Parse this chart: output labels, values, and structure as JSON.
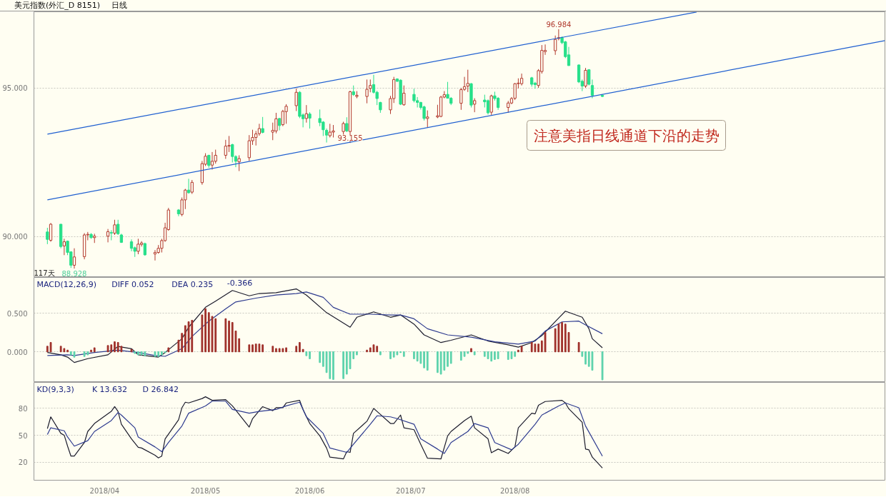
{
  "chart_data": [
    {
      "type": "candlestick",
      "title": "美元指数(外汇_D 8151)",
      "subtitle": "日线",
      "x": [
        "2018-03-15",
        "2018-03-16",
        "2018-03-19",
        "2018-03-20",
        "2018-03-21",
        "2018-03-22",
        "2018-03-23",
        "2018-03-26",
        "2018-03-27",
        "2018-03-28",
        "2018-03-29",
        "2018-04-02",
        "2018-04-03",
        "2018-04-04",
        "2018-04-05",
        "2018-04-06",
        "2018-04-09",
        "2018-04-10",
        "2018-04-11",
        "2018-04-12",
        "2018-04-13",
        "2018-04-16",
        "2018-04-17",
        "2018-04-18",
        "2018-04-19",
        "2018-04-20",
        "2018-04-23",
        "2018-04-24",
        "2018-04-25",
        "2018-04-26",
        "2018-04-27",
        "2018-04-30",
        "2018-05-01",
        "2018-05-02",
        "2018-05-03",
        "2018-05-04",
        "2018-05-07",
        "2018-05-08",
        "2018-05-09",
        "2018-05-10",
        "2018-05-11",
        "2018-05-14",
        "2018-05-15",
        "2018-05-16",
        "2018-05-17",
        "2018-05-18",
        "2018-05-21",
        "2018-05-22",
        "2018-05-23",
        "2018-05-24",
        "2018-05-25",
        "2018-05-28",
        "2018-05-29",
        "2018-05-30",
        "2018-05-31",
        "2018-06-01",
        "2018-06-04",
        "2018-06-05",
        "2018-06-06",
        "2018-06-07",
        "2018-06-08",
        "2018-06-11",
        "2018-06-12",
        "2018-06-13",
        "2018-06-14",
        "2018-06-15",
        "2018-06-18",
        "2018-06-19",
        "2018-06-20",
        "2018-06-21",
        "2018-06-22",
        "2018-06-25",
        "2018-06-26",
        "2018-06-27",
        "2018-06-28",
        "2018-06-29",
        "2018-07-02",
        "2018-07-03",
        "2018-07-04",
        "2018-07-05",
        "2018-07-06",
        "2018-07-09",
        "2018-07-10",
        "2018-07-11",
        "2018-07-12",
        "2018-07-13",
        "2018-07-16",
        "2018-07-17",
        "2018-07-18",
        "2018-07-19",
        "2018-07-20",
        "2018-07-23",
        "2018-07-24",
        "2018-07-25",
        "2018-07-26",
        "2018-07-27",
        "2018-07-30",
        "2018-07-31",
        "2018-08-01",
        "2018-08-02",
        "2018-08-03",
        "2018-08-06",
        "2018-08-07",
        "2018-08-08",
        "2018-08-09",
        "2018-08-10",
        "2018-08-13",
        "2018-08-14",
        "2018-08-15",
        "2018-08-16",
        "2018-08-17",
        "2018-08-20",
        "2018-08-21",
        "2018-08-22",
        "2018-08-23",
        "2018-08-24",
        "2018-08-27"
      ],
      "ohlc": [
        [
          90.16,
          90.3,
          89.75,
          89.91
        ],
        [
          89.88,
          90.46,
          89.83,
          90.42
        ],
        [
          90.42,
          90.43,
          89.61,
          89.67
        ],
        [
          89.69,
          89.93,
          89.38,
          89.83
        ],
        [
          89.85,
          89.87,
          89.38,
          89.47
        ],
        [
          89.49,
          89.51,
          88.95,
          89.04
        ],
        [
          89.04,
          89.61,
          88.928,
          89.32
        ],
        [
          89.33,
          90.12,
          89.24,
          90.06
        ],
        [
          90.06,
          90.16,
          89.88,
          90.08
        ],
        [
          90.08,
          90.12,
          89.93,
          89.97
        ],
        [
          89.97,
          90.1,
          89.79,
          90.02
        ],
        [
          90.02,
          90.26,
          89.81,
          90.17
        ],
        [
          90.14,
          90.22,
          89.88,
          90.12
        ],
        [
          90.12,
          90.57,
          90.06,
          90.4
        ],
        [
          90.42,
          90.57,
          90.06,
          90.1
        ],
        [
          90.06,
          90.1,
          89.79,
          89.81
        ],
        [
          89.83,
          89.91,
          89.51,
          89.61
        ],
        [
          89.63,
          89.67,
          89.32,
          89.51
        ],
        [
          89.51,
          89.93,
          89.41,
          89.75
        ],
        [
          89.74,
          89.85,
          89.67,
          89.79
        ],
        [
          89.77,
          89.8,
          89.36,
          89.39
        ],
        [
          89.42,
          89.55,
          89.2,
          89.47
        ],
        [
          89.47,
          89.72,
          89.43,
          89.61
        ],
        [
          89.61,
          89.93,
          89.47,
          89.87
        ],
        [
          89.87,
          90.47,
          89.83,
          90.3
        ],
        [
          90.24,
          90.97,
          90.2,
          90.9
        ],
        [
          90.9,
          90.93,
          90.69,
          90.77
        ],
        [
          90.75,
          91.32,
          90.69,
          91.24
        ],
        [
          91.24,
          91.61,
          90.93,
          91.57
        ],
        [
          91.57,
          91.95,
          91.45,
          91.48
        ],
        [
          91.5,
          91.91,
          91.44,
          91.83
        ],
        [
          91.82,
          92.55,
          91.75,
          92.46
        ],
        [
          92.44,
          92.81,
          92.38,
          92.71
        ],
        [
          92.74,
          92.76,
          92.32,
          92.4
        ],
        [
          92.41,
          92.85,
          92.26,
          92.54
        ],
        [
          92.54,
          92.93,
          92.46,
          92.74
        ],
        [
          92.74,
          93.26,
          92.62,
          93.05
        ],
        [
          93.05,
          93.39,
          92.85,
          93.07
        ],
        [
          93.1,
          93.13,
          92.5,
          92.7
        ],
        [
          92.7,
          92.74,
          92.34,
          92.54
        ],
        [
          92.52,
          92.74,
          92.21,
          92.63
        ],
        [
          92.66,
          93.42,
          92.55,
          93.23
        ],
        [
          93.23,
          93.6,
          93.09,
          93.34
        ],
        [
          93.34,
          93.56,
          93.07,
          93.46
        ],
        [
          93.47,
          93.8,
          93.4,
          93.64
        ],
        [
          93.64,
          94.03,
          93.48,
          93.51
        ],
        [
          93.52,
          93.84,
          93.25,
          93.58
        ],
        [
          93.56,
          94.17,
          93.48,
          93.97
        ],
        [
          93.98,
          94.0,
          93.58,
          93.74
        ],
        [
          93.77,
          94.27,
          93.72,
          94.22
        ],
        [
          94.21,
          94.46,
          93.8,
          94.39
        ],
        [
          94.41,
          94.99,
          94.23,
          94.86
        ],
        [
          94.86,
          94.9,
          93.99,
          94.05
        ],
        [
          94.1,
          94.15,
          93.68,
          93.97
        ],
        [
          93.98,
          94.43,
          93.84,
          94.14
        ],
        [
          94.13,
          94.19,
          93.64,
          93.99
        ],
        [
          93.98,
          94.28,
          93.72,
          93.84
        ],
        [
          93.86,
          93.89,
          93.39,
          93.6
        ],
        [
          93.58,
          93.64,
          93.17,
          93.42
        ],
        [
          93.4,
          93.8,
          93.34,
          93.52
        ],
        [
          93.52,
          93.76,
          93.34,
          93.56
        ],
        [
          93.54,
          93.87,
          93.44,
          93.81
        ],
        [
          93.81,
          94.02,
          93.52,
          93.56
        ],
        [
          93.54,
          94.91,
          93.155,
          94.88
        ],
        [
          94.88,
          95.09,
          94.74,
          94.78
        ],
        [
          94.72,
          94.9,
          94.66,
          94.76
        ],
        [
          94.72,
          95.29,
          94.49,
          94.96
        ],
        [
          94.99,
          95.29,
          94.86,
          95.09
        ],
        [
          95.12,
          95.45,
          94.82,
          94.86
        ],
        [
          94.86,
          94.91,
          94.43,
          94.65
        ],
        [
          94.52,
          94.54,
          94.17,
          94.27
        ],
        [
          94.27,
          94.74,
          94.13,
          94.65
        ],
        [
          94.65,
          95.38,
          94.5,
          95.29
        ],
        [
          95.31,
          95.33,
          95.21,
          95.23
        ],
        [
          95.27,
          95.29,
          94.43,
          94.46
        ],
        [
          94.44,
          95.09,
          94.41,
          94.83
        ],
        [
          94.79,
          94.98,
          94.52,
          94.58
        ],
        [
          94.58,
          94.7,
          94.35,
          94.52
        ],
        [
          94.52,
          94.54,
          94.28,
          94.35
        ],
        [
          94.37,
          94.41,
          93.91,
          93.98
        ],
        [
          93.98,
          94.25,
          93.68,
          94.03
        ],
        [
          94.03,
          94.44,
          93.99,
          94.07
        ],
        [
          94.05,
          94.74,
          94.02,
          94.7
        ],
        [
          94.7,
          94.9,
          94.66,
          94.78
        ],
        [
          94.79,
          95.21,
          94.65,
          94.66
        ],
        [
          94.66,
          94.7,
          94.43,
          94.49
        ],
        [
          94.49,
          95.01,
          94.27,
          94.95
        ],
        [
          94.96,
          95.38,
          94.91,
          95.05
        ],
        [
          95.07,
          95.62,
          94.87,
          95.16
        ],
        [
          95.15,
          95.17,
          94.35,
          94.43
        ],
        [
          94.46,
          94.66,
          94.19,
          94.58
        ],
        [
          94.6,
          94.78,
          94.35,
          94.54
        ],
        [
          94.58,
          94.62,
          94.11,
          94.17
        ],
        [
          94.19,
          94.78,
          94.1,
          94.74
        ],
        [
          94.74,
          94.88,
          94.58,
          94.65
        ],
        [
          94.66,
          94.7,
          94.27,
          94.35
        ],
        [
          94.35,
          94.57,
          94.17,
          94.5
        ],
        [
          94.5,
          94.7,
          94.46,
          94.65
        ],
        [
          94.66,
          95.17,
          94.6,
          95.15
        ],
        [
          95.15,
          95.33,
          94.99,
          95.17
        ],
        [
          95.15,
          95.49,
          95.09,
          95.33
        ],
        [
          95.35,
          95.38,
          95.05,
          95.13
        ],
        [
          95.17,
          95.21,
          94.98,
          95.12
        ],
        [
          95.09,
          95.64,
          95.01,
          95.59
        ],
        [
          95.56,
          96.45,
          95.49,
          96.27
        ],
        [
          96.23,
          96.47,
          96.12,
          96.27
        ],
        [
          96.26,
          96.77,
          96.12,
          96.64
        ],
        [
          96.67,
          96.984,
          96.61,
          96.7
        ],
        [
          96.7,
          96.74,
          96.48,
          96.53
        ],
        [
          96.56,
          96.59,
          96.01,
          96.06
        ],
        [
          96.12,
          96.39,
          95.75,
          95.76
        ],
        [
          95.78,
          95.8,
          95.17,
          95.21
        ],
        [
          95.23,
          95.29,
          94.9,
          95.07
        ],
        [
          95.07,
          95.68,
          95.01,
          95.6
        ],
        [
          95.62,
          95.64,
          95.09,
          95.13
        ],
        [
          95.09,
          95.29,
          94.66,
          94.76
        ],
        [
          94.76,
          94.78,
          94.7,
          94.72
        ]
      ],
      "colors": [
        "#27e08a",
        "#b33a2e",
        "#27e08a",
        "#b33a2e",
        "#27e08a",
        "#27e08a",
        "#b33a2e",
        "#b33a2e",
        "#b33a2e",
        "#27e08a",
        "#b33a2e",
        "#b33a2e",
        "#27e08a",
        "#b33a2e",
        "#27e08a",
        "#27e08a",
        "#27e08a",
        "#27e08a",
        "#b33a2e",
        "#b33a2e",
        "#27e08a",
        "#b33a2e",
        "#b33a2e",
        "#b33a2e",
        "#b33a2e",
        "#b33a2e",
        "#27e08a",
        "#b33a2e",
        "#b33a2e",
        "#27e08a",
        "#b33a2e",
        "#b33a2e",
        "#b33a2e",
        "#27e08a",
        "#b33a2e",
        "#b33a2e",
        "#b33a2e",
        "#b33a2e",
        "#27e08a",
        "#27e08a",
        "#b33a2e",
        "#b33a2e",
        "#b33a2e",
        "#b33a2e",
        "#b33a2e",
        "#27e08a",
        "#b33a2e",
        "#b33a2e",
        "#27e08a",
        "#b33a2e",
        "#b33a2e",
        "#b33a2e",
        "#27e08a",
        "#27e08a",
        "#b33a2e",
        "#27e08a",
        "#27e08a",
        "#27e08a",
        "#27e08a",
        "#b33a2e",
        "#b33a2e",
        "#b33a2e",
        "#27e08a",
        "#b33a2e",
        "#27e08a",
        "#b33a2e",
        "#b33a2e",
        "#b33a2e",
        "#27e08a",
        "#27e08a",
        "#27e08a",
        "#b33a2e",
        "#b33a2e",
        "#27e08a",
        "#27e08a",
        "#b33a2e",
        "#27e08a",
        "#27e08a",
        "#27e08a",
        "#27e08a",
        "#b33a2e",
        "#b33a2e",
        "#b33a2e",
        "#b33a2e",
        "#27e08a",
        "#27e08a",
        "#b33a2e",
        "#b33a2e",
        "#b33a2e",
        "#27e08a",
        "#b33a2e",
        "#27e08a",
        "#27e08a",
        "#b33a2e",
        "#27e08a",
        "#27e08a",
        "#b33a2e",
        "#b33a2e",
        "#b33a2e",
        "#b33a2e",
        "#b33a2e",
        "#27e08a",
        "#27e08a",
        "#b33a2e",
        "#b33a2e",
        "#b33a2e",
        "#b33a2e",
        "#b33a2e",
        "#27e08a",
        "#27e08a",
        "#27e08a",
        "#27e08a",
        "#27e08a",
        "#b33a2e",
        "#27e08a",
        "#27e08a",
        "#27e08a"
      ],
      "series": [
        {
          "type": "line",
          "x": [
            "2018-03-15",
            "2018-09-24"
          ],
          "values": [
            93.45,
            97.56
          ],
          "color": "#1f5fd0"
        },
        {
          "type": "line",
          "x": [
            "2018-03-15",
            "2018-11-19"
          ],
          "values": [
            91.24,
            96.6
          ],
          "color": "#1f5fd0"
        }
      ],
      "xlim": [
        "2018-03-11",
        "2018-11-19"
      ],
      "ylim": [
        88.63,
        97.57
      ],
      "yticks": [
        {
          "value": 90,
          "label": "90.000"
        },
        {
          "value": 95,
          "label": "95.000"
        }
      ],
      "grid": "y",
      "tick_labels": "y",
      "annotations": [
        {
          "text": "96.984",
          "x": "2018-08-14",
          "y": 96.984
        },
        {
          "text": "93.155",
          "x": "2018-06-13",
          "y": 93.155
        },
        "117天",
        {
          "text": "88.928",
          "x": "2018-03-23",
          "y": 88.928
        },
        "注意美指日线通道下沿的走势"
      ]
    },
    {
      "type": "bar",
      "title": "MACD(12,26,9)",
      "x": [
        "2018-03-15",
        "2018-03-16",
        "2018-03-19",
        "2018-03-20",
        "2018-03-21",
        "2018-03-22",
        "2018-03-23",
        "2018-03-26",
        "2018-03-27",
        "2018-03-28",
        "2018-03-29",
        "2018-04-02",
        "2018-04-03",
        "2018-04-04",
        "2018-04-05",
        "2018-04-06",
        "2018-04-09",
        "2018-04-10",
        "2018-04-11",
        "2018-04-12",
        "2018-04-13",
        "2018-04-16",
        "2018-04-17",
        "2018-04-18",
        "2018-04-19",
        "2018-04-20",
        "2018-04-23",
        "2018-04-24",
        "2018-04-25",
        "2018-04-26",
        "2018-04-27",
        "2018-04-30",
        "2018-05-01",
        "2018-05-02",
        "2018-05-03",
        "2018-05-04",
        "2018-05-07",
        "2018-05-08",
        "2018-05-09",
        "2018-05-10",
        "2018-05-11",
        "2018-05-14",
        "2018-05-15",
        "2018-05-16",
        "2018-05-17",
        "2018-05-18",
        "2018-05-21",
        "2018-05-22",
        "2018-05-23",
        "2018-05-24",
        "2018-05-25",
        "2018-05-28",
        "2018-05-29",
        "2018-05-30",
        "2018-05-31",
        "2018-06-01",
        "2018-06-04",
        "2018-06-05",
        "2018-06-06",
        "2018-06-07",
        "2018-06-08",
        "2018-06-11",
        "2018-06-12",
        "2018-06-13",
        "2018-06-14",
        "2018-06-15",
        "2018-06-18",
        "2018-06-19",
        "2018-06-20",
        "2018-06-21",
        "2018-06-22",
        "2018-06-25",
        "2018-06-26",
        "2018-06-27",
        "2018-06-28",
        "2018-06-29",
        "2018-07-02",
        "2018-07-03",
        "2018-07-04",
        "2018-07-05",
        "2018-07-06",
        "2018-07-09",
        "2018-07-10",
        "2018-07-11",
        "2018-07-12",
        "2018-07-13",
        "2018-07-16",
        "2018-07-17",
        "2018-07-18",
        "2018-07-19",
        "2018-07-20",
        "2018-07-23",
        "2018-07-24",
        "2018-07-25",
        "2018-07-26",
        "2018-07-27",
        "2018-07-30",
        "2018-07-31",
        "2018-08-01",
        "2018-08-02",
        "2018-08-03",
        "2018-08-06",
        "2018-08-07",
        "2018-08-08",
        "2018-08-09",
        "2018-08-10",
        "2018-08-13",
        "2018-08-14",
        "2018-08-15",
        "2018-08-16",
        "2018-08-17",
        "2018-08-20",
        "2018-08-21",
        "2018-08-22",
        "2018-08-23",
        "2018-08-24",
        "2018-08-27"
      ],
      "series": [
        {
          "values": [
            0.07,
            0.12,
            0.07,
            0.04,
            0.02,
            -0.04,
            -0.07,
            -0.06,
            -0.04,
            0.02,
            0.05,
            0.08,
            0.09,
            0.13,
            0.12,
            0.07,
            0.03,
            -0.02,
            -0.04,
            -0.04,
            -0.05,
            -0.06,
            -0.06,
            -0.04,
            -0.01,
            0.05,
            0.15,
            0.24,
            0.34,
            0.39,
            0.41,
            0.48,
            0.56,
            0.51,
            0.46,
            0.43,
            0.43,
            0.4,
            0.38,
            0.27,
            0.17,
            0.09,
            0.09,
            0.1,
            0.1,
            0.09,
            0.07,
            0.04,
            0.04,
            0.04,
            0.05,
            0.07,
            0.12,
            0.03,
            -0.05,
            -0.09,
            -0.14,
            -0.19,
            -0.27,
            -0.35,
            -0.36,
            -0.35,
            -0.29,
            -0.22,
            -0.09,
            -0.04,
            0.02,
            0.05,
            0.09,
            0.07,
            -0.04,
            -0.09,
            -0.07,
            -0.04,
            -0.01,
            -0.06,
            -0.09,
            -0.12,
            -0.15,
            -0.21,
            -0.24,
            -0.27,
            -0.29,
            -0.24,
            -0.19,
            -0.15,
            -0.11,
            -0.06,
            -0.02,
            0.04,
            -0.04,
            -0.06,
            -0.09,
            -0.12,
            -0.1,
            -0.09,
            -0.1,
            -0.09,
            -0.06,
            0.02,
            0.07,
            0.12,
            0.1,
            0.1,
            0.14,
            0.25,
            0.3,
            0.36,
            0.38,
            0.36,
            0.25,
            0.12,
            -0.06,
            -0.16,
            -0.19,
            -0.24,
            -0.366
          ],
          "colors": [
            "#a0322c",
            "#a0322c",
            "#a0322c",
            "#a0322c",
            "#a0322c",
            "#5fd3ad",
            "#5fd3ad",
            "#5fd3ad",
            "#5fd3ad",
            "#a0322c",
            "#a0322c",
            "#a0322c",
            "#a0322c",
            "#a0322c",
            "#a0322c",
            "#a0322c",
            "#a0322c",
            "#5fd3ad",
            "#5fd3ad",
            "#5fd3ad",
            "#5fd3ad",
            "#5fd3ad",
            "#5fd3ad",
            "#5fd3ad",
            "#5fd3ad",
            "#a0322c",
            "#a0322c",
            "#a0322c",
            "#a0322c",
            "#a0322c",
            "#a0322c",
            "#a0322c",
            "#a0322c",
            "#a0322c",
            "#a0322c",
            "#a0322c",
            "#a0322c",
            "#a0322c",
            "#a0322c",
            "#a0322c",
            "#a0322c",
            "#a0322c",
            "#a0322c",
            "#a0322c",
            "#a0322c",
            "#a0322c",
            "#a0322c",
            "#a0322c",
            "#a0322c",
            "#a0322c",
            "#a0322c",
            "#a0322c",
            "#a0322c",
            "#a0322c",
            "#5fd3ad",
            "#5fd3ad",
            "#5fd3ad",
            "#5fd3ad",
            "#5fd3ad",
            "#5fd3ad",
            "#5fd3ad",
            "#5fd3ad",
            "#5fd3ad",
            "#5fd3ad",
            "#5fd3ad",
            "#5fd3ad",
            "#a0322c",
            "#a0322c",
            "#a0322c",
            "#a0322c",
            "#5fd3ad",
            "#5fd3ad",
            "#5fd3ad",
            "#5fd3ad",
            "#5fd3ad",
            "#5fd3ad",
            "#5fd3ad",
            "#5fd3ad",
            "#5fd3ad",
            "#5fd3ad",
            "#5fd3ad",
            "#5fd3ad",
            "#5fd3ad",
            "#5fd3ad",
            "#5fd3ad",
            "#5fd3ad",
            "#5fd3ad",
            "#5fd3ad",
            "#5fd3ad",
            "#a0322c",
            "#5fd3ad",
            "#5fd3ad",
            "#5fd3ad",
            "#5fd3ad",
            "#5fd3ad",
            "#5fd3ad",
            "#5fd3ad",
            "#5fd3ad",
            "#5fd3ad",
            "#a0322c",
            "#a0322c",
            "#a0322c",
            "#a0322c",
            "#a0322c",
            "#a0322c",
            "#a0322c",
            "#a0322c",
            "#a0322c",
            "#a0322c",
            "#a0322c",
            "#a0322c",
            "#a0322c",
            "#5fd3ad",
            "#5fd3ad",
            "#5fd3ad",
            "#5fd3ad",
            "#5fd3ad"
          ]
        },
        {
          "type": "line",
          "x": [
            "2018-03-15",
            "2018-03-19",
            "2018-03-21",
            "2018-03-23",
            "2018-03-27",
            "2018-04-02",
            "2018-04-05",
            "2018-04-09",
            "2018-04-11",
            "2018-04-17",
            "2018-04-19",
            "2018-04-24",
            "2018-04-26",
            "2018-05-01",
            "2018-05-04",
            "2018-05-09",
            "2018-05-14",
            "2018-05-17",
            "2018-05-22",
            "2018-05-28",
            "2018-05-31",
            "2018-06-06",
            "2018-06-13",
            "2018-06-15",
            "2018-06-20",
            "2018-06-25",
            "2018-06-28",
            "2018-07-02",
            "2018-07-05",
            "2018-07-10",
            "2018-07-13",
            "2018-07-19",
            "2018-07-24",
            "2018-07-30",
            "2018-08-02",
            "2018-08-06",
            "2018-08-09",
            "2018-08-14",
            "2018-08-16",
            "2018-08-21",
            "2018-08-23",
            "2018-08-24",
            "2018-08-27"
          ],
          "values": [
            -0.01,
            -0.04,
            -0.07,
            -0.14,
            -0.09,
            -0.04,
            0.07,
            0.04,
            -0.04,
            -0.07,
            -0.01,
            0.17,
            0.32,
            0.58,
            0.66,
            0.8,
            0.73,
            0.76,
            0.77,
            0.82,
            0.74,
            0.51,
            0.32,
            0.45,
            0.52,
            0.45,
            0.48,
            0.36,
            0.22,
            0.12,
            0.15,
            0.22,
            0.14,
            0.09,
            0.06,
            0.12,
            0.21,
            0.44,
            0.53,
            0.45,
            0.3,
            0.17,
            0.052
          ],
          "color": "#1c1c2c"
        },
        {
          "type": "line",
          "x": [
            "2018-03-15",
            "2018-03-21",
            "2018-03-23",
            "2018-03-29",
            "2018-04-05",
            "2018-04-11",
            "2018-04-16",
            "2018-04-19",
            "2018-04-24",
            "2018-04-27",
            "2018-05-02",
            "2018-05-07",
            "2018-05-10",
            "2018-05-16",
            "2018-05-22",
            "2018-05-28",
            "2018-05-31",
            "2018-06-05",
            "2018-06-08",
            "2018-06-13",
            "2018-06-19",
            "2018-06-25",
            "2018-06-28",
            "2018-07-02",
            "2018-07-06",
            "2018-07-12",
            "2018-07-19",
            "2018-07-26",
            "2018-08-02",
            "2018-08-07",
            "2018-08-10",
            "2018-08-15",
            "2018-08-20",
            "2018-08-22",
            "2018-08-27"
          ],
          "values": [
            -0.05,
            -0.04,
            -0.05,
            -0.01,
            0.02,
            -0.01,
            -0.05,
            -0.06,
            0.04,
            0.2,
            0.4,
            0.56,
            0.65,
            0.7,
            0.74,
            0.76,
            0.78,
            0.71,
            0.58,
            0.49,
            0.49,
            0.48,
            0.48,
            0.43,
            0.3,
            0.22,
            0.19,
            0.13,
            0.1,
            0.14,
            0.27,
            0.39,
            0.4,
            0.35,
            0.235
          ],
          "color": "#2e3b8f"
        }
      ],
      "xlim": [
        "2018-03-11",
        "2018-11-19"
      ],
      "ylim": [
        -0.4,
        0.97
      ],
      "yticks": [
        {
          "value": 0,
          "label": "0.000"
        },
        {
          "value": 0.5,
          "label": "0.500"
        }
      ],
      "grid": "y",
      "tick_labels": "y",
      "annotations": [
        "DIFF 0.052",
        "DEA 0.235",
        "-0.366"
      ]
    },
    {
      "type": "line",
      "title": "KD(9,3,3)",
      "series": [
        {
          "x": [
            "2018-03-15",
            "2018-03-16",
            "2018-03-19",
            "2018-03-20",
            "2018-03-21",
            "2018-03-22",
            "2018-03-23",
            "2018-03-26",
            "2018-03-27",
            "2018-03-29",
            "2018-04-03",
            "2018-04-04",
            "2018-04-05",
            "2018-04-06",
            "2018-04-09",
            "2018-04-11",
            "2018-04-12",
            "2018-04-16",
            "2018-04-17",
            "2018-04-18",
            "2018-04-19",
            "2018-04-23",
            "2018-04-24",
            "2018-04-25",
            "2018-04-26",
            "2018-04-30",
            "2018-05-01",
            "2018-05-03",
            "2018-05-07",
            "2018-05-09",
            "2018-05-14",
            "2018-05-15",
            "2018-05-18",
            "2018-05-21",
            "2018-05-22",
            "2018-05-24",
            "2018-05-25",
            "2018-05-29",
            "2018-05-30",
            "2018-06-01",
            "2018-06-04",
            "2018-06-06",
            "2018-06-07",
            "2018-06-11",
            "2018-06-12",
            "2018-06-13",
            "2018-06-14",
            "2018-06-18",
            "2018-06-20",
            "2018-06-21",
            "2018-06-25",
            "2018-06-26",
            "2018-06-28",
            "2018-06-29",
            "2018-07-02",
            "2018-07-04",
            "2018-07-06",
            "2018-07-10",
            "2018-07-12",
            "2018-07-13",
            "2018-07-17",
            "2018-07-19",
            "2018-07-20",
            "2018-07-24",
            "2018-07-25",
            "2018-07-27",
            "2018-07-30",
            "2018-08-01",
            "2018-08-02",
            "2018-08-06",
            "2018-08-07",
            "2018-08-08",
            "2018-08-10",
            "2018-08-15",
            "2018-08-16",
            "2018-08-17",
            "2018-08-21",
            "2018-08-22",
            "2018-08-23",
            "2018-08-24",
            "2018-08-27"
          ],
          "values": [
            57.5,
            70.6,
            52.2,
            50.2,
            38.0,
            26.9,
            26.9,
            42.0,
            54.3,
            63.2,
            76.7,
            82.0,
            76.7,
            62.4,
            46.1,
            36.7,
            35.9,
            27.8,
            24.9,
            26.9,
            46.1,
            67.3,
            80.8,
            86.9,
            86.1,
            91.0,
            93.0,
            89.0,
            89.8,
            82.8,
            59.2,
            68.6,
            82.0,
            77.5,
            80.8,
            80.8,
            86.1,
            89.0,
            78.8,
            63.2,
            49.4,
            35.9,
            25.7,
            23.7,
            31.8,
            31.0,
            52.2,
            65.7,
            80.0,
            76.7,
            63.2,
            63.2,
            72.6,
            58.4,
            56.3,
            40.0,
            24.5,
            23.7,
            49.4,
            54.3,
            66.5,
            71.4,
            58.4,
            46.1,
            30.6,
            34.7,
            29.8,
            37.1,
            58.4,
            74.7,
            73.9,
            83.6,
            87.7,
            89.0,
            86.1,
            79.6,
            64.5,
            34.7,
            33.9,
            25.7,
            13.632
          ],
          "color": "#1c1c2c"
        },
        {
          "x": [
            "2018-03-15",
            "2018-03-16",
            "2018-03-20",
            "2018-03-21",
            "2018-03-23",
            "2018-03-27",
            "2018-03-29",
            "2018-04-03",
            "2018-04-05",
            "2018-04-06",
            "2018-04-10",
            "2018-04-11",
            "2018-04-16",
            "2018-04-18",
            "2018-04-20",
            "2018-04-24",
            "2018-04-26",
            "2018-05-01",
            "2018-05-03",
            "2018-05-07",
            "2018-05-09",
            "2018-05-14",
            "2018-05-17",
            "2018-05-22",
            "2018-05-25",
            "2018-05-29",
            "2018-05-31",
            "2018-06-05",
            "2018-06-07",
            "2018-06-12",
            "2018-06-14",
            "2018-06-19",
            "2018-06-21",
            "2018-06-25",
            "2018-06-27",
            "2018-07-02",
            "2018-07-04",
            "2018-07-09",
            "2018-07-11",
            "2018-07-13",
            "2018-07-18",
            "2018-07-20",
            "2018-07-24",
            "2018-07-26",
            "2018-07-31",
            "2018-08-02",
            "2018-08-07",
            "2018-08-09",
            "2018-08-14",
            "2018-08-16",
            "2018-08-20",
            "2018-08-22",
            "2018-08-27"
          ],
          "values": [
            51.0,
            58.4,
            55.1,
            48.2,
            38.0,
            44.1,
            54.3,
            66.5,
            75.5,
            72.6,
            58.4,
            48.2,
            37.1,
            31.8,
            42.0,
            60.4,
            74.7,
            82.8,
            88.1,
            88.1,
            78.8,
            74.7,
            76.7,
            78.8,
            82.8,
            86.9,
            70.6,
            52.2,
            35.9,
            31.0,
            40.0,
            62.4,
            71.8,
            70.6,
            68.6,
            62.4,
            46.1,
            34.7,
            29.8,
            42.0,
            54.3,
            63.2,
            58.4,
            42.0,
            33.9,
            40.0,
            62.4,
            72.6,
            82.8,
            86.1,
            80.8,
            60.4,
            26.842
          ],
          "color": "#2e3b8f"
        }
      ],
      "xlim": [
        "2018-03-11",
        "2018-11-19"
      ],
      "ylim": [
        0,
        109
      ],
      "yticks": [
        20,
        50,
        80
      ],
      "xticks": [
        {
          "value": "2018-04",
          "label": "2018/04"
        },
        {
          "value": "2018-05",
          "label": "2018/05"
        },
        {
          "value": "2018-06",
          "label": "2018/06"
        },
        {
          "value": "2018-07",
          "label": "2018/07"
        },
        {
          "value": "2018-08",
          "label": "2018/08"
        }
      ],
      "grid": "y",
      "annotations": [
        "K 13.632",
        "D 26.842"
      ]
    }
  ]
}
